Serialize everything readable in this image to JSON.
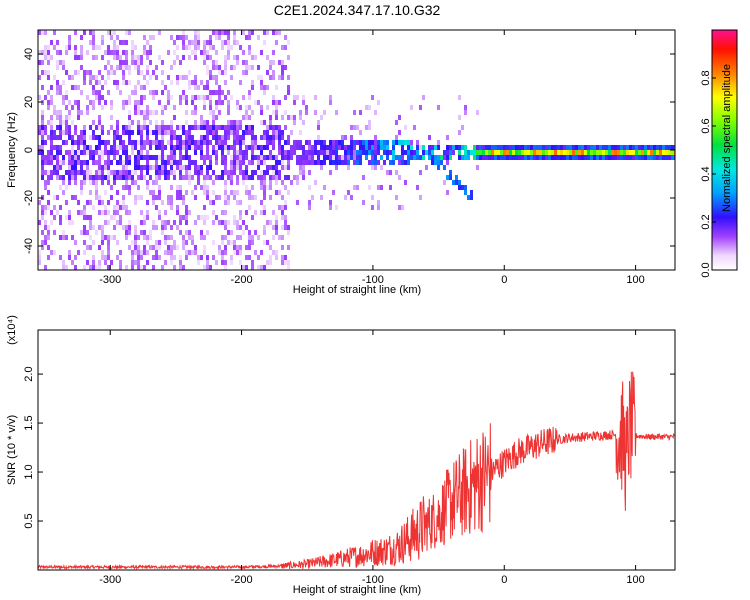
{
  "title": "C2E1.2024.347.17.10.G32",
  "chart_data": [
    {
      "type": "heatmap",
      "name": "spectrogram",
      "xlabel": "Height of straight line (km)",
      "ylabel": "Frequency (Hz)",
      "xlim": [
        -355,
        130
      ],
      "ylim": [
        -50,
        50
      ],
      "xticks": [
        -300,
        -200,
        -100,
        0,
        100
      ],
      "yticks": [
        -40,
        -20,
        0,
        20,
        40
      ],
      "colorbar": {
        "label": "Normalized spectral amplitude",
        "range": [
          0,
          1
        ],
        "ticks": [
          0.0,
          0.2,
          0.4,
          0.6,
          0.8
        ]
      },
      "grid": false
    },
    {
      "type": "line",
      "name": "snr",
      "xlabel": "Height of straight line (km)",
      "ylabel": "SNR (10 * v/v)",
      "scale_label": "(x10⁴)",
      "color": "#ee3333",
      "xlim": [
        -355,
        130
      ],
      "ylim": [
        0,
        2.45
      ],
      "xticks": [
        -300,
        -200,
        -100,
        0,
        100
      ],
      "yticks": [
        0.5,
        1.0,
        1.5,
        2.0
      ],
      "grid": false,
      "series": [
        {
          "x": [
            -355,
            -300,
            -250,
            -200,
            -170,
            -150,
            -130,
            -110,
            -100,
            -90,
            -80,
            -70,
            -60,
            -50,
            -40,
            -35,
            -30,
            -25,
            -20,
            -15,
            -10,
            -5,
            0,
            10,
            20,
            30,
            40,
            50,
            60,
            70,
            80,
            85,
            90,
            93,
            95,
            97,
            100,
            110,
            120,
            130
          ],
          "y": [
            0.03,
            0.03,
            0.03,
            0.03,
            0.04,
            0.06,
            0.1,
            0.15,
            0.18,
            0.2,
            0.25,
            0.35,
            0.45,
            0.55,
            0.7,
            0.75,
            0.8,
            0.85,
            0.9,
            0.95,
            1.0,
            1.05,
            1.1,
            1.2,
            1.25,
            1.3,
            1.33,
            1.35,
            1.36,
            1.37,
            1.38,
            1.38,
            1.36,
            1.1,
            1.4,
            1.45,
            1.37,
            1.36,
            1.36,
            1.36
          ]
        }
      ]
    }
  ]
}
